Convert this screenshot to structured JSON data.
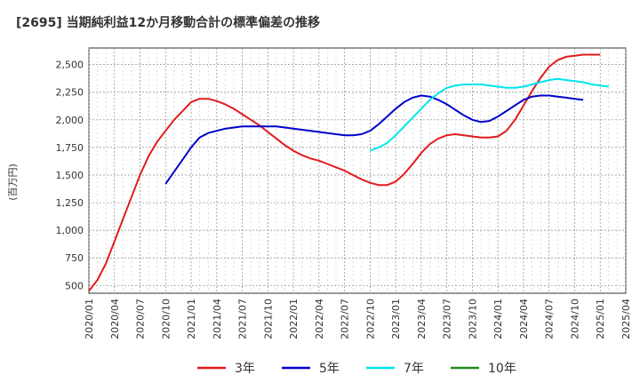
{
  "chart_data": {
    "type": "line",
    "title": "[2695]  当期純利益12か月移動合計の標準偏差の推移",
    "ylabel": "(百万円)",
    "xlabel": "",
    "ylim": [
      430,
      2650
    ],
    "yticks": [
      500,
      750,
      1000,
      1250,
      1500,
      1750,
      2000,
      2250,
      2500
    ],
    "ytick_labels": [
      "500",
      "750",
      "1,000",
      "1,250",
      "1,500",
      "1,750",
      "2,000",
      "2,250",
      "2,500"
    ],
    "xlim": [
      "2020-01",
      "2025-04"
    ],
    "xtick_labels": [
      "2020/01",
      "2020/04",
      "2020/07",
      "2020/10",
      "2021/01",
      "2021/04",
      "2021/07",
      "2021/10",
      "2022/01",
      "2022/04",
      "2022/07",
      "2022/10",
      "2023/01",
      "2023/04",
      "2023/07",
      "2023/10",
      "2024/01",
      "2024/04",
      "2024/07",
      "2024/10",
      "2025/01",
      "2025/04"
    ],
    "grid": true,
    "legend_position": "bottom",
    "series": [
      {
        "name": "3年",
        "color": "#e31a1c",
        "start": "2020-01",
        "values": [
          450,
          550,
          700,
          900,
          1100,
          1300,
          1500,
          1670,
          1800,
          1900,
          2000,
          2080,
          2160,
          2190,
          2190,
          2170,
          2140,
          2100,
          2050,
          2000,
          1950,
          1890,
          1830,
          1770,
          1720,
          1680,
          1650,
          1630,
          1600,
          1570,
          1540,
          1500,
          1460,
          1430,
          1410,
          1410,
          1440,
          1510,
          1600,
          1700,
          1780,
          1830,
          1860,
          1870,
          1860,
          1850,
          1840,
          1840,
          1850,
          1900,
          2000,
          2130,
          2260,
          2380,
          2480,
          2540,
          2570,
          2580,
          2590,
          2590,
          2590
        ]
      },
      {
        "name": "5年",
        "color": "#0000cc",
        "start": "2020-10",
        "values": [
          1420,
          1530,
          1640,
          1750,
          1840,
          1880,
          1900,
          1920,
          1930,
          1940,
          1940,
          1940,
          1940,
          1940,
          1930,
          1920,
          1910,
          1900,
          1890,
          1880,
          1870,
          1860,
          1860,
          1870,
          1900,
          1960,
          2030,
          2100,
          2160,
          2200,
          2220,
          2210,
          2180,
          2140,
          2090,
          2040,
          2000,
          1980,
          1990,
          2030,
          2080,
          2130,
          2180,
          2210,
          2220,
          2220,
          2210,
          2200,
          2190,
          2180
        ]
      },
      {
        "name": "7年",
        "color": "#00e5ee",
        "start": "2022-10",
        "values": [
          1720,
          1750,
          1790,
          1860,
          1940,
          2020,
          2100,
          2180,
          2240,
          2290,
          2310,
          2320,
          2320,
          2320,
          2310,
          2300,
          2290,
          2290,
          2300,
          2320,
          2340,
          2360,
          2370,
          2360,
          2350,
          2340,
          2320,
          2310,
          2300
        ]
      },
      {
        "name": "10年",
        "color": "#228b22",
        "start": "",
        "values": []
      }
    ]
  }
}
